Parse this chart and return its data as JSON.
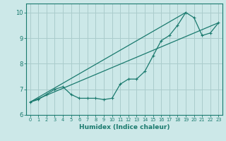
{
  "background_color": "#cce8e8",
  "grid_color": "#aacccc",
  "line_color": "#1a7a6e",
  "xlabel": "Humidex (Indice chaleur)",
  "xlim": [
    -0.5,
    23.5
  ],
  "ylim": [
    6.0,
    10.35
  ],
  "yticks": [
    6,
    7,
    8,
    9,
    10
  ],
  "xticks": [
    0,
    1,
    2,
    3,
    4,
    5,
    6,
    7,
    8,
    9,
    10,
    11,
    12,
    13,
    14,
    15,
    16,
    17,
    18,
    19,
    20,
    21,
    22,
    23
  ],
  "line1_x": [
    0,
    1,
    2,
    3,
    4,
    5,
    6,
    7,
    8,
    9,
    10,
    11,
    12,
    13,
    14,
    15,
    16,
    17,
    18,
    19,
    20,
    21,
    22,
    23
  ],
  "line1_y": [
    6.5,
    6.6,
    6.8,
    7.0,
    7.1,
    6.8,
    6.65,
    6.65,
    6.65,
    6.6,
    6.65,
    7.2,
    7.4,
    7.4,
    7.7,
    8.3,
    8.9,
    9.1,
    9.5,
    10.0,
    9.8,
    9.1,
    9.2,
    9.6
  ],
  "line2_x": [
    0,
    23
  ],
  "line2_y": [
    6.5,
    9.6
  ],
  "line3_x": [
    0,
    19
  ],
  "line3_y": [
    6.5,
    10.0
  ]
}
